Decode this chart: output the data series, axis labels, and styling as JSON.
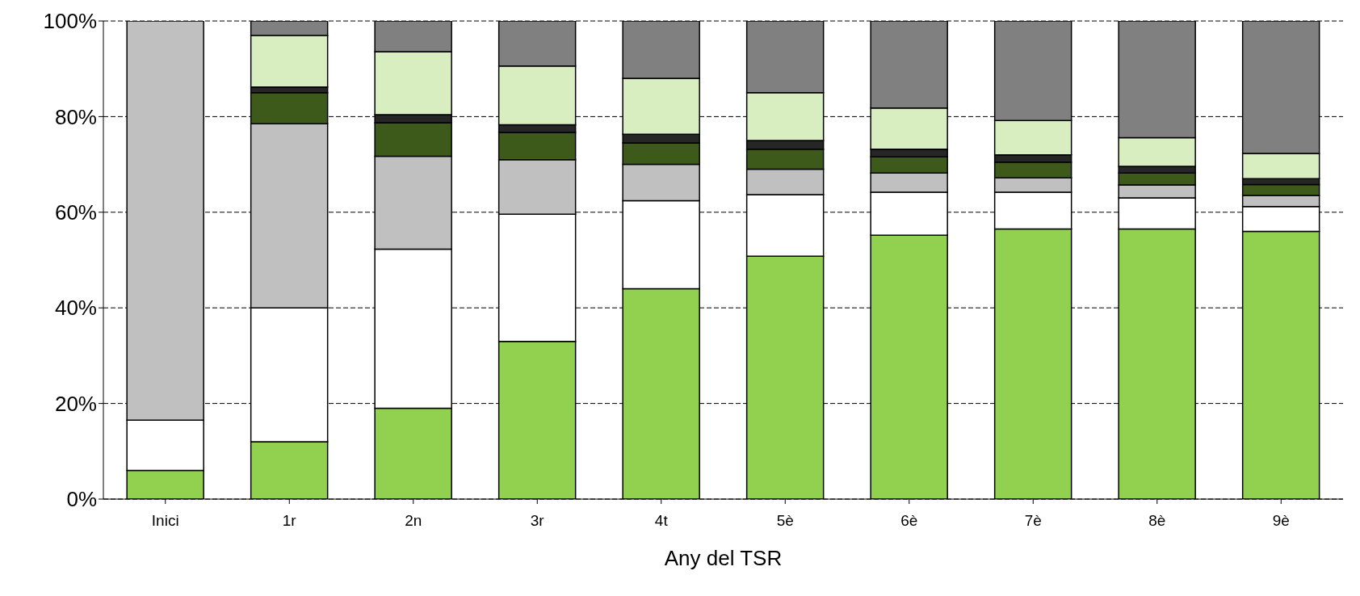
{
  "chart_data": {
    "type": "bar",
    "stacked": true,
    "xlabel": "Any del TSR",
    "categories": [
      "Inici",
      "1r",
      "2n",
      "3r",
      "4t",
      "5è",
      "6è",
      "7è",
      "8è",
      "9è"
    ],
    "series": [
      {
        "color": "#92d050",
        "values": [
          6,
          12,
          19,
          33,
          44,
          50.8,
          55.2,
          56.5,
          56.5,
          56
        ]
      },
      {
        "color": "#ffffff",
        "values": [
          10.5,
          28,
          33.3,
          26.6,
          18.4,
          12.9,
          9,
          7.7,
          6.5,
          5.2
        ]
      },
      {
        "color": "#c0c0c0",
        "values": [
          83.5,
          38.5,
          19.4,
          11.4,
          7.6,
          5.3,
          4,
          3,
          2.7,
          2.3
        ]
      },
      {
        "color": "#3d5a1a",
        "values": [
          0,
          6.5,
          7,
          5.7,
          4.5,
          4.2,
          3.4,
          3.3,
          2.5,
          2.3
        ]
      },
      {
        "color": "#262626",
        "values": [
          0,
          1.2,
          1.7,
          1.6,
          1.8,
          1.8,
          1.6,
          1.5,
          1.4,
          1.2
        ]
      },
      {
        "color": "#d8edc0",
        "values": [
          0,
          10.8,
          13.2,
          12.3,
          11.7,
          10,
          8.6,
          7.2,
          6,
          5.3
        ]
      },
      {
        "color": "#808080",
        "values": [
          0,
          3,
          6.4,
          9.4,
          12,
          15,
          18.2,
          20.8,
          24.4,
          27.7
        ]
      }
    ],
    "ylim": [
      0,
      100
    ],
    "yticks": [
      {
        "value": 0,
        "label": "0%"
      },
      {
        "value": 20,
        "label": "20%"
      },
      {
        "value": 40,
        "label": "40%"
      },
      {
        "value": 60,
        "label": "60%"
      },
      {
        "value": 80,
        "label": "80%"
      },
      {
        "value": 100,
        "label": "100%"
      }
    ],
    "grid": "y",
    "legend": false
  }
}
